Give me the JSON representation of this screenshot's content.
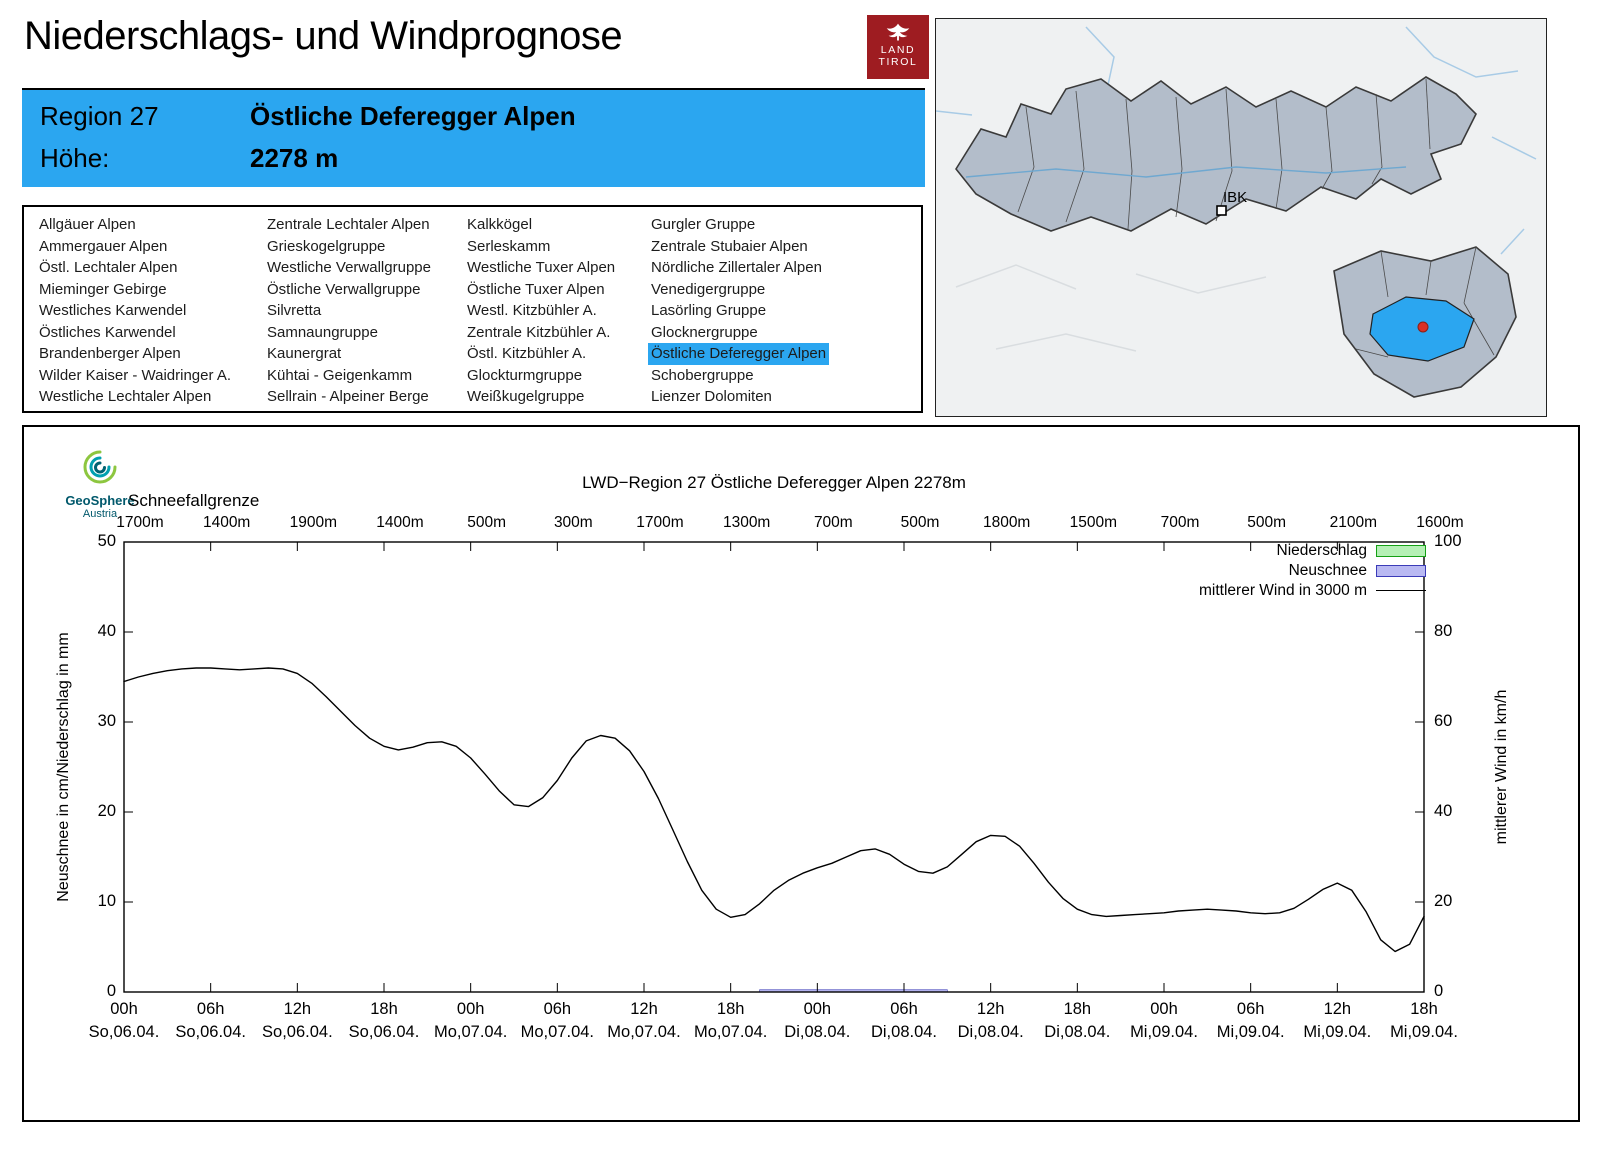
{
  "header": {
    "title": "Niederschlags- und Windprognose",
    "logo_line1": "LAND",
    "logo_line2": "TIROL"
  },
  "region_info": {
    "region_label": "Region 27",
    "region_name": "Östliche Deferegger Alpen",
    "altitude_label": "Höhe:",
    "altitude_value": "2278 m"
  },
  "region_list": {
    "selected": "Östliche Deferegger Alpen",
    "columns": [
      [
        "Allgäuer Alpen",
        "Ammergauer Alpen",
        "Östl. Lechtaler Alpen",
        "Mieminger Gebirge",
        "Westliches Karwendel",
        "Östliches Karwendel",
        "Brandenberger Alpen",
        "Wilder Kaiser - Waidringer A.",
        "Westliche Lechtaler Alpen"
      ],
      [
        "Zentrale Lechtaler Alpen",
        "Grieskogelgruppe",
        "Westliche Verwallgruppe",
        "Östliche Verwallgruppe",
        "Silvretta",
        "Samnaungruppe",
        "Kaunergrat",
        "Kühtai - Geigenkamm",
        "Sellrain - Alpeiner Berge"
      ],
      [
        "Kalkkögel",
        "Serleskamm",
        "Westliche Tuxer Alpen",
        "Östliche Tuxer Alpen",
        "Westl. Kitzbühler A.",
        "Zentrale Kitzbühler A.",
        "Östl. Kitzbühler A.",
        "Glockturmgruppe",
        "Weißkugelgruppe"
      ],
      [
        "Gurgler Gruppe",
        "Zentrale Stubaier Alpen",
        "Nördliche Zillertaler Alpen",
        "Venedigergruppe",
        "Lasörling Gruppe",
        "Glocknergruppe",
        "Östliche Deferegger Alpen",
        "Schobergruppe",
        "Lienzer Dolomiten"
      ]
    ]
  },
  "map": {
    "marker_label": "IBK",
    "highlight_color": "#2ba6f0",
    "dot_color": "#d93025"
  },
  "logos": {
    "geosphere_line1": "GeoSphere",
    "geosphere_line2": "Austria"
  },
  "colors": {
    "accent_blue": "#2ba6f0",
    "logo_red": "#9e1c21",
    "legend_green": "#b5f0b5",
    "legend_blue": "#b9b9f2"
  },
  "chart_data": {
    "type": "line",
    "title": "LWD−Region 27 Östliche Deferegger Alpen 2278m",
    "snowline_label": "Schneefallgrenze",
    "snowline_values": [
      "1700m",
      "1400m",
      "1900m",
      "1400m",
      "500m",
      "300m",
      "1700m",
      "1300m",
      "700m",
      "500m",
      "1800m",
      "1500m",
      "700m",
      "500m",
      "2100m",
      "1600m"
    ],
    "ylabel_left": "Neuschnee in cm/Niederschlag in mm",
    "ylabel_right": "mittlerer Wind in km/h",
    "plot": {
      "xmax_hours": 90,
      "ylim_left": [
        0,
        50
      ],
      "ylim_right": [
        0,
        100
      ],
      "grid": false
    },
    "y_ticks_left": [
      0,
      10,
      20,
      30,
      40,
      50
    ],
    "y_ticks_right": [
      0,
      20,
      40,
      60,
      80,
      100
    ],
    "x_axis": {
      "hours": [
        "00h",
        "06h",
        "12h",
        "18h",
        "00h",
        "06h",
        "12h",
        "18h",
        "00h",
        "06h",
        "12h",
        "18h",
        "00h",
        "06h",
        "12h",
        "18h"
      ],
      "days": [
        "So,06.04.",
        "So,06.04.",
        "So,06.04.",
        "So,06.04.",
        "Mo,07.04.",
        "Mo,07.04.",
        "Mo,07.04.",
        "Mo,07.04.",
        "Di,08.04.",
        "Di,08.04.",
        "Di,08.04.",
        "Di,08.04.",
        "Mi,09.04.",
        "Mi,09.04.",
        "Mi,09.04.",
        "Mi,09.04."
      ]
    },
    "legend": [
      {
        "label": "Niederschlag",
        "type": "box",
        "fill": "#b5f0b5",
        "border": "#15a015"
      },
      {
        "label": "Neuschnee",
        "type": "box",
        "fill": "#b9b9f2",
        "border": "#3b3bb8"
      },
      {
        "label": "mittlerer Wind in 3000 m",
        "type": "line",
        "color": "#000000"
      }
    ],
    "wind": {
      "name": "mittlerer Wind in 3000 m",
      "unit": "km/h",
      "hour_step": 1,
      "values_kmh": [
        69,
        70,
        70.8,
        71.4,
        71.8,
        72,
        72,
        71.8,
        71.6,
        71.8,
        72,
        71.8,
        70.8,
        68.6,
        65.6,
        62.4,
        59.2,
        56.4,
        54.6,
        53.8,
        54.4,
        55.4,
        55.6,
        54.6,
        52,
        48.4,
        44.6,
        41.6,
        41.2,
        43.2,
        47,
        52,
        55.8,
        57,
        56.4,
        53.6,
        49,
        43,
        36,
        29,
        22.6,
        18.4,
        16.6,
        17.2,
        19.6,
        22.6,
        24.8,
        26.4,
        27.6,
        28.6,
        30,
        31.4,
        31.8,
        30.6,
        28.4,
        26.8,
        26.4,
        27.8,
        30.6,
        33.4,
        34.8,
        34.6,
        32.4,
        28.6,
        24.4,
        20.8,
        18.4,
        17.2,
        16.8,
        17,
        17.2,
        17.4,
        17.6,
        18,
        18.2,
        18.4,
        18.2,
        18,
        17.6,
        17.4,
        17.6,
        18.6,
        20.6,
        22.8,
        24.2,
        22.6,
        17.8,
        11.6,
        9,
        10.6,
        16.8
      ]
    },
    "neuschnee_segments": [
      {
        "from_hour": 44,
        "to_hour": 57,
        "cm": 0.25
      }
    ],
    "niederschlag_segments": []
  }
}
